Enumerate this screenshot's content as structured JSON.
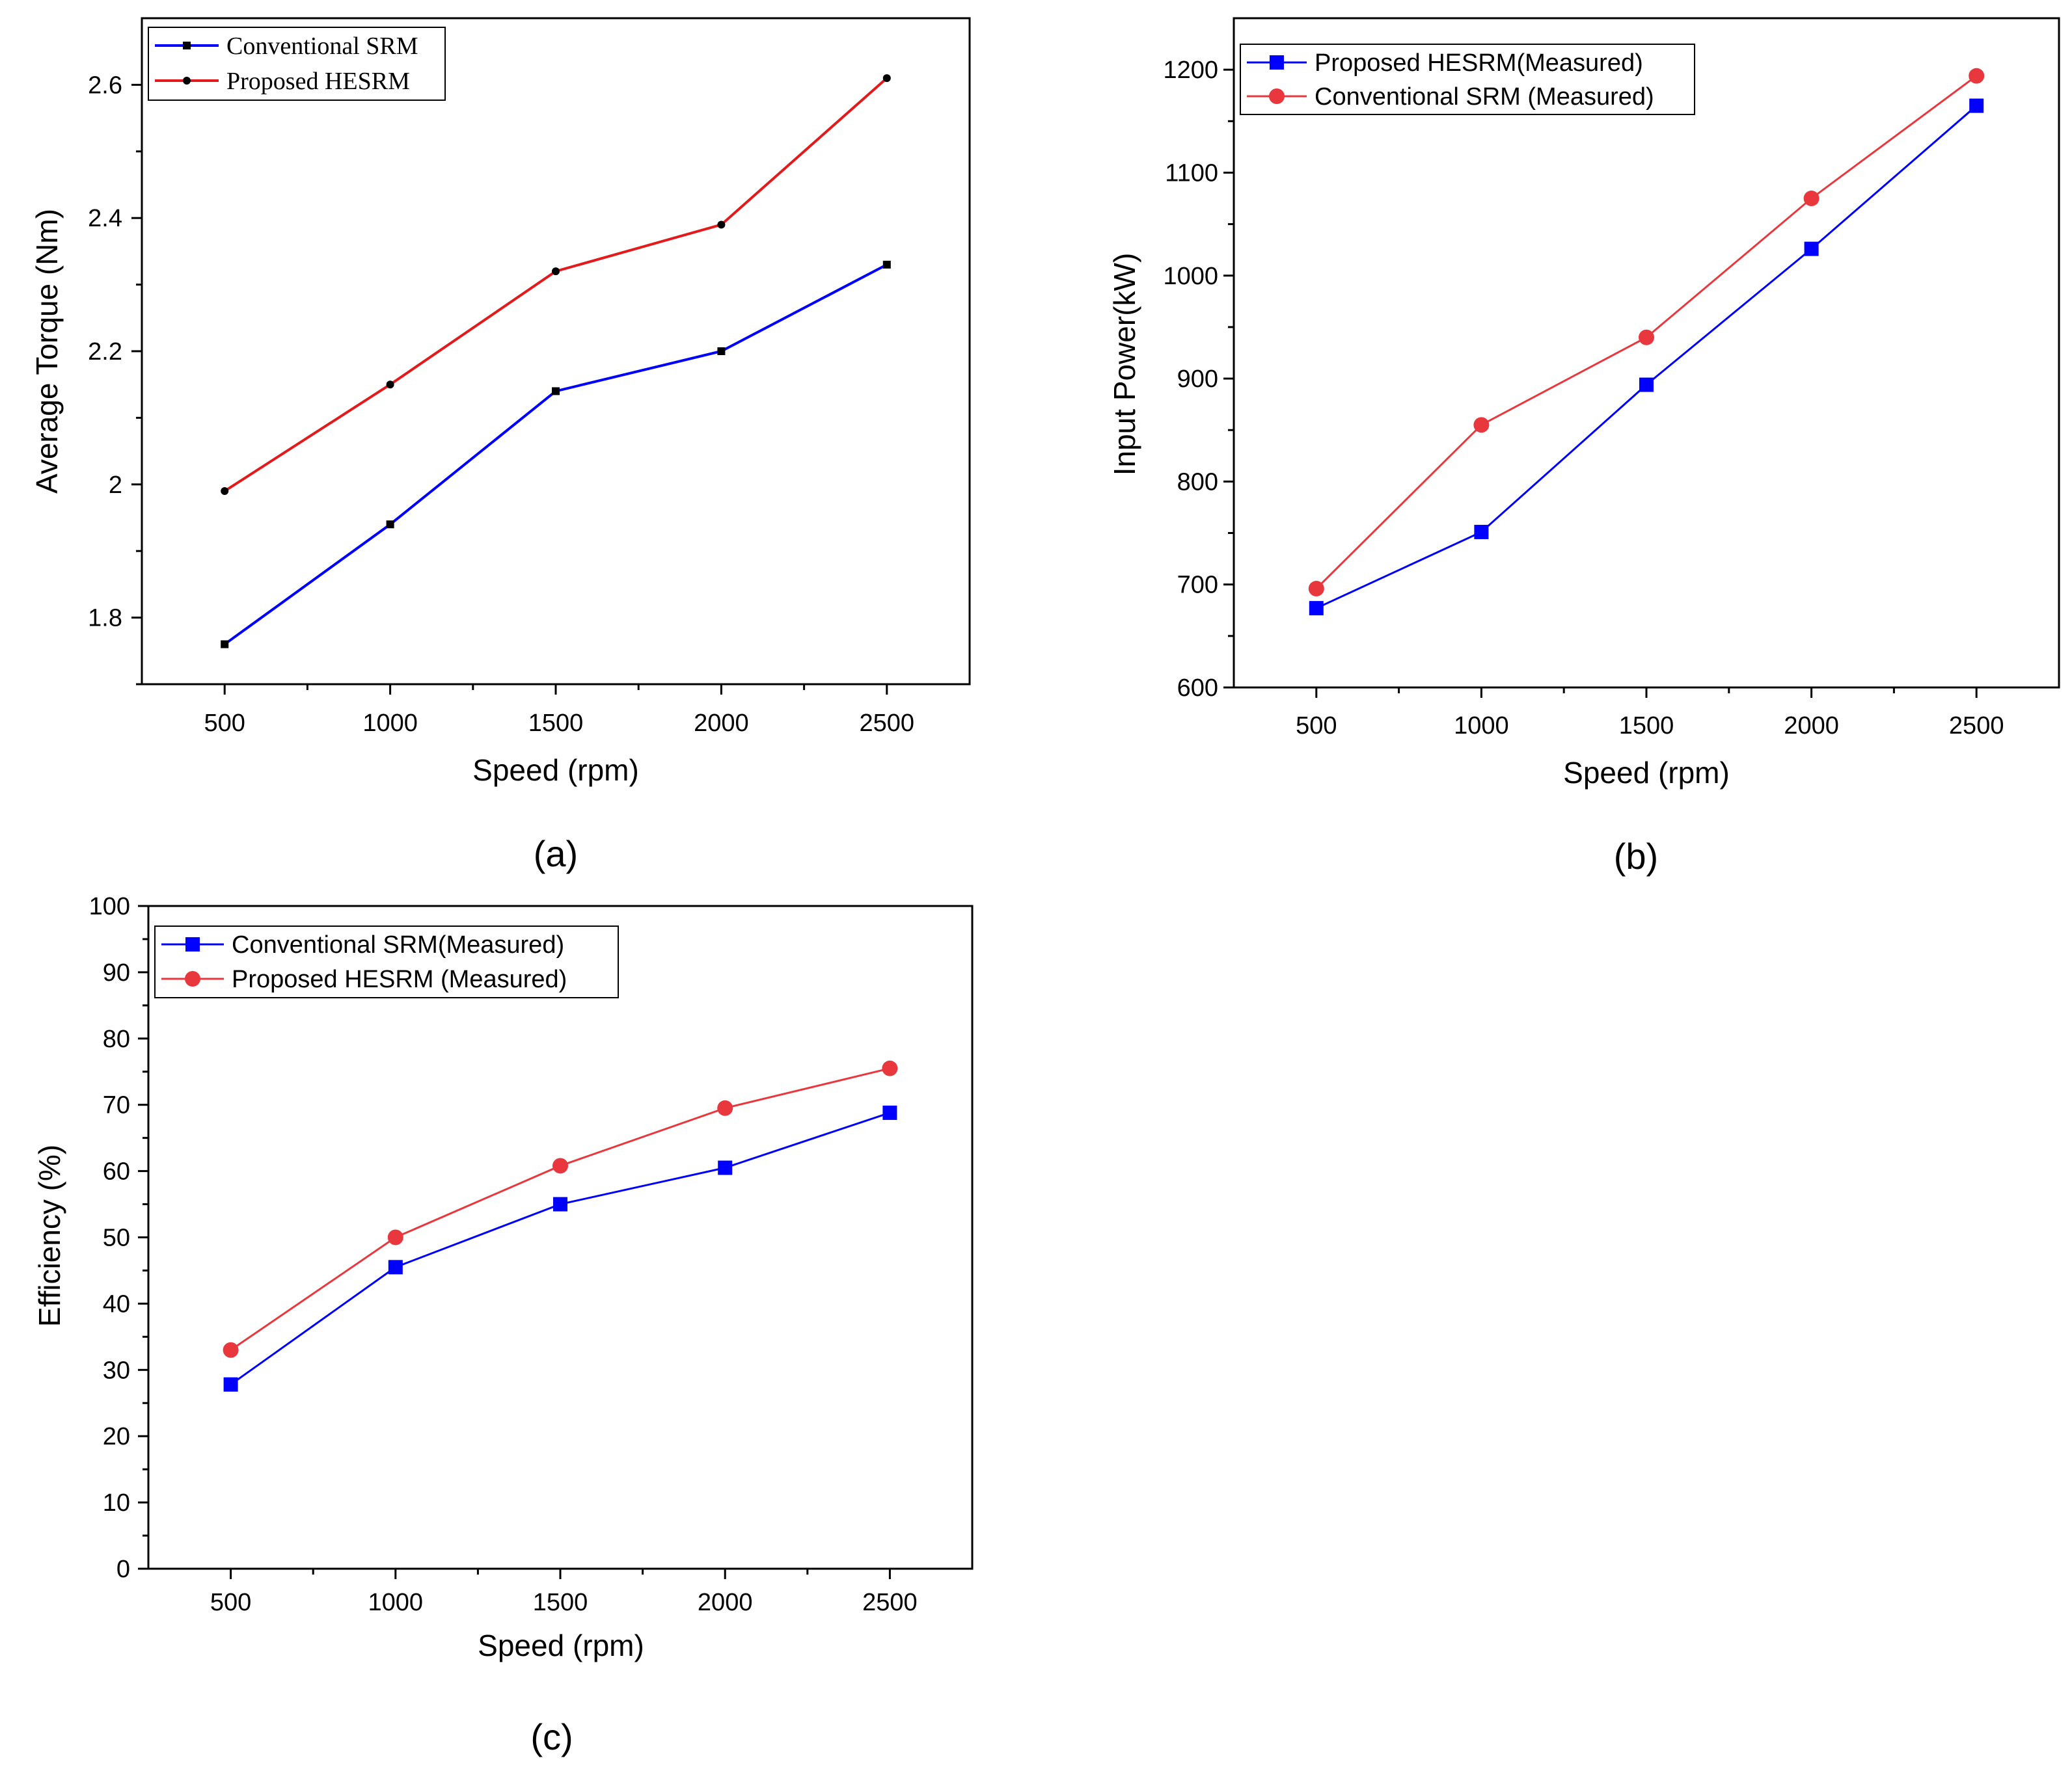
{
  "figure": {
    "panels": [
      "(a)",
      "(b)",
      "(c)"
    ]
  },
  "chart_data": [
    {
      "type": "line",
      "panel_label": "(a)",
      "xlabel": "Speed (rpm)",
      "ylabel": "Average Torque (Nm)",
      "x": [
        500,
        1000,
        1500,
        2000,
        2500
      ],
      "xlim": [
        250,
        2750
      ],
      "xticks": [
        500,
        1000,
        1500,
        2000,
        2500
      ],
      "xtick_labels": [
        "500",
        "1000",
        "1500",
        "2000",
        "2500"
      ],
      "ylim": [
        1.7,
        2.7
      ],
      "yticks": [
        1.8,
        2.0,
        2.2,
        2.4,
        2.6
      ],
      "ytick_labels": [
        "1.8",
        "2",
        "2.2",
        "2.4",
        "2.6"
      ],
      "grid": false,
      "legend_position": "top-left",
      "legend_font": "serif",
      "series": [
        {
          "name": "Conventional SRM",
          "color": "#0000ff",
          "marker": "square-small",
          "values": [
            1.76,
            1.94,
            2.14,
            2.2,
            2.33
          ]
        },
        {
          "name": "Proposed HESRM",
          "color": "#e31a1c",
          "marker": "circle-small",
          "values": [
            1.99,
            2.15,
            2.32,
            2.39,
            2.61
          ]
        }
      ]
    },
    {
      "type": "line",
      "panel_label": "(b)",
      "xlabel": "Speed (rpm)",
      "ylabel": "Input Power(kW)",
      "x": [
        500,
        1000,
        1500,
        2000,
        2500
      ],
      "xlim": [
        250,
        2750
      ],
      "xticks": [
        500,
        1000,
        1500,
        2000,
        2500
      ],
      "xtick_labels": [
        "500",
        "1000",
        "1500",
        "2000",
        "2500"
      ],
      "ylim": [
        600,
        1250
      ],
      "yticks": [
        600,
        700,
        800,
        900,
        1000,
        1100,
        1200
      ],
      "ytick_labels": [
        "600",
        "700",
        "800",
        "900",
        "1000",
        "1100",
        "1200"
      ],
      "grid": false,
      "legend_position": "top-left",
      "legend_font": "sans",
      "series": [
        {
          "name": "Proposed HESRM(Measured)",
          "color": "#0000ff",
          "marker": "square",
          "values": [
            677,
            751,
            894,
            1026,
            1165
          ]
        },
        {
          "name": "Conventional SRM (Measured)",
          "color": "#e8383d",
          "marker": "circle",
          "values": [
            696,
            855,
            940,
            1075,
            1194
          ]
        }
      ]
    },
    {
      "type": "line",
      "panel_label": "(c)",
      "xlabel": "Speed (rpm)",
      "ylabel": "Efficiency (%)",
      "x": [
        500,
        1000,
        1500,
        2000,
        2500
      ],
      "xlim": [
        250,
        2750
      ],
      "xticks": [
        500,
        1000,
        1500,
        2000,
        2500
      ],
      "xtick_labels": [
        "500",
        "1000",
        "1500",
        "2000",
        "2500"
      ],
      "ylim": [
        0,
        100
      ],
      "yticks": [
        0,
        10,
        20,
        30,
        40,
        50,
        60,
        70,
        80,
        90,
        100
      ],
      "ytick_labels": [
        "0",
        "10",
        "20",
        "30",
        "40",
        "50",
        "60",
        "70",
        "80",
        "90",
        "100"
      ],
      "grid": false,
      "legend_position": "top-left",
      "legend_font": "sans",
      "series": [
        {
          "name": "Conventional SRM(Measured)",
          "color": "#0000ff",
          "marker": "square",
          "values": [
            27.8,
            45.5,
            55.0,
            60.5,
            68.8
          ]
        },
        {
          "name": "Proposed HESRM (Measured)",
          "color": "#e8383d",
          "marker": "circle",
          "values": [
            33.0,
            50.0,
            60.8,
            69.5,
            75.5
          ]
        }
      ]
    }
  ]
}
